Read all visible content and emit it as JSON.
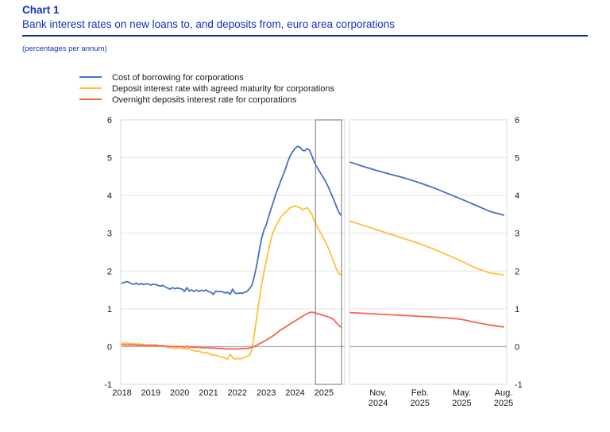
{
  "header": {
    "chart_label": "Chart 1",
    "title": "Bank interest rates on new loans to, and deposits from, euro area corporations",
    "unit_note": "(percentages per annum)"
  },
  "colors": {
    "heading_blue": "#1134BE",
    "rule_blue": "#0A2D9E",
    "borrowing": "#4472C4",
    "deposit_maturity": "#FFC233",
    "overnight": "#F8624A",
    "grid": "#E3E3E3",
    "zero_line": "#B0B0B0",
    "panel_border": "#D8D8D8",
    "highlight_box": "#8A8A8A",
    "axis_text": "#1A1A1A"
  },
  "legend": [
    {
      "id": "borrowing",
      "label": "Cost of borrowing for corporations",
      "color": "#4472C4"
    },
    {
      "id": "deposit_maturity",
      "label": "Deposit interest rate with agreed maturity for corporations",
      "color": "#FFC233"
    },
    {
      "id": "overnight",
      "label": "Overnight deposits interest rate for corporations",
      "color": "#F8624A"
    }
  ],
  "chart_data": {
    "type": "line",
    "ylim": [
      -1,
      6
    ],
    "yticks": [
      6,
      5,
      4,
      3,
      2,
      1,
      0,
      -1
    ],
    "grid": true,
    "legend_position": "top-left",
    "panels": [
      {
        "name": "main",
        "x_range": "Jan 2018 - Aug 2025, monthly",
        "xticks": [
          {
            "label": "2018",
            "index": 0
          },
          {
            "label": "2019",
            "index": 12
          },
          {
            "label": "2020",
            "index": 24
          },
          {
            "label": "2021",
            "index": 36
          },
          {
            "label": "2022",
            "index": 48
          },
          {
            "label": "2023",
            "index": 60
          },
          {
            "label": "2024",
            "index": 72
          },
          {
            "label": "2025",
            "index": 84
          }
        ],
        "highlight_span_indices": [
          80.5,
          91.3
        ],
        "series": [
          {
            "id": "borrowing",
            "name": "Cost of borrowing for corporations",
            "values": [
              1.68,
              1.7,
              1.72,
              1.7,
              1.66,
              1.65,
              1.68,
              1.64,
              1.67,
              1.64,
              1.66,
              1.66,
              1.63,
              1.65,
              1.64,
              1.62,
              1.6,
              1.62,
              1.58,
              1.55,
              1.52,
              1.56,
              1.53,
              1.55,
              1.54,
              1.52,
              1.46,
              1.56,
              1.47,
              1.5,
              1.46,
              1.5,
              1.46,
              1.49,
              1.47,
              1.5,
              1.45,
              1.44,
              1.38,
              1.47,
              1.45,
              1.46,
              1.44,
              1.42,
              1.44,
              1.38,
              1.52,
              1.42,
              1.4,
              1.42,
              1.41,
              1.44,
              1.46,
              1.53,
              1.61,
              1.84,
              2.14,
              2.5,
              2.84,
              3.08,
              3.22,
              3.44,
              3.64,
              3.84,
              4.04,
              4.2,
              4.38,
              4.54,
              4.7,
              4.9,
              5.06,
              5.16,
              5.25,
              5.3,
              5.28,
              5.2,
              5.18,
              5.24,
              5.2,
              5.05,
              4.88,
              4.76,
              4.65,
              4.55,
              4.45,
              4.33,
              4.2,
              4.05,
              3.9,
              3.74,
              3.58,
              3.48
            ]
          },
          {
            "id": "deposit_maturity",
            "name": "Deposit interest rate with agreed maturity for corporations",
            "values": [
              0.09,
              0.08,
              0.09,
              0.08,
              0.07,
              0.08,
              0.06,
              0.07,
              0.05,
              0.06,
              0.04,
              0.05,
              0.06,
              0.04,
              0.05,
              0.03,
              0.02,
              0.03,
              0.01,
              -0.02,
              -0.04,
              -0.01,
              -0.05,
              -0.03,
              -0.02,
              -0.05,
              -0.04,
              -0.07,
              -0.05,
              -0.09,
              -0.11,
              -0.13,
              -0.11,
              -0.15,
              -0.17,
              -0.16,
              -0.18,
              -0.21,
              -0.23,
              -0.22,
              -0.25,
              -0.27,
              -0.29,
              -0.31,
              -0.33,
              -0.2,
              -0.29,
              -0.34,
              -0.31,
              -0.33,
              -0.31,
              -0.28,
              -0.26,
              -0.23,
              -0.1,
              0.3,
              0.75,
              1.2,
              1.6,
              1.95,
              2.25,
              2.55,
              2.85,
              3.05,
              3.2,
              3.3,
              3.42,
              3.5,
              3.55,
              3.62,
              3.68,
              3.7,
              3.72,
              3.7,
              3.68,
              3.62,
              3.65,
              3.68,
              3.6,
              3.5,
              3.32,
              3.2,
              3.08,
              2.96,
              2.84,
              2.72,
              2.58,
              2.42,
              2.26,
              2.08,
              1.95,
              1.9
            ]
          },
          {
            "id": "overnight",
            "name": "Overnight deposits interest rate for corporations",
            "values": [
              0.05,
              0.05,
              0.04,
              0.05,
              0.04,
              0.04,
              0.04,
              0.03,
              0.04,
              0.03,
              0.03,
              0.03,
              0.03,
              0.03,
              0.03,
              0.02,
              0.02,
              0.02,
              0.01,
              0.01,
              0.0,
              0.0,
              0.0,
              0.0,
              0.0,
              0.0,
              -0.01,
              0.0,
              -0.01,
              -0.01,
              -0.02,
              -0.02,
              -0.02,
              -0.03,
              -0.03,
              -0.03,
              -0.03,
              -0.04,
              -0.04,
              -0.04,
              -0.05,
              -0.05,
              -0.05,
              -0.06,
              -0.06,
              -0.06,
              -0.06,
              -0.06,
              -0.06,
              -0.06,
              -0.05,
              -0.05,
              -0.05,
              -0.04,
              -0.02,
              0.0,
              0.03,
              0.07,
              0.1,
              0.14,
              0.17,
              0.21,
              0.25,
              0.29,
              0.34,
              0.39,
              0.44,
              0.48,
              0.52,
              0.56,
              0.6,
              0.64,
              0.68,
              0.72,
              0.76,
              0.8,
              0.84,
              0.87,
              0.9,
              0.91,
              0.9,
              0.88,
              0.86,
              0.84,
              0.82,
              0.8,
              0.78,
              0.76,
              0.72,
              0.64,
              0.57,
              0.52
            ]
          }
        ]
      },
      {
        "name": "zoom",
        "x_range": "Sep 2024 - Aug 2025, monthly",
        "xticks": [
          {
            "label": "Nov.",
            "label2": "2024",
            "index": 2
          },
          {
            "label": "Feb.",
            "label2": "2025",
            "index": 5
          },
          {
            "label": "May.",
            "label2": "2025",
            "index": 8
          },
          {
            "label": "Aug.",
            "label2": "2025",
            "index": 11
          }
        ],
        "series": [
          {
            "id": "borrowing",
            "name": "Cost of borrowing for corporations",
            "values": [
              4.88,
              4.76,
              4.65,
              4.55,
              4.45,
              4.33,
              4.2,
              4.05,
              3.9,
              3.74,
              3.58,
              3.48
            ]
          },
          {
            "id": "deposit_maturity",
            "name": "Deposit interest rate with agreed maturity for corporations",
            "values": [
              3.32,
              3.2,
              3.08,
              2.96,
              2.84,
              2.72,
              2.58,
              2.42,
              2.26,
              2.08,
              1.95,
              1.9
            ]
          },
          {
            "id": "overnight",
            "name": "Overnight deposits interest rate for corporations",
            "values": [
              0.9,
              0.88,
              0.86,
              0.84,
              0.82,
              0.8,
              0.78,
              0.76,
              0.72,
              0.64,
              0.57,
              0.52
            ]
          }
        ]
      }
    ]
  }
}
